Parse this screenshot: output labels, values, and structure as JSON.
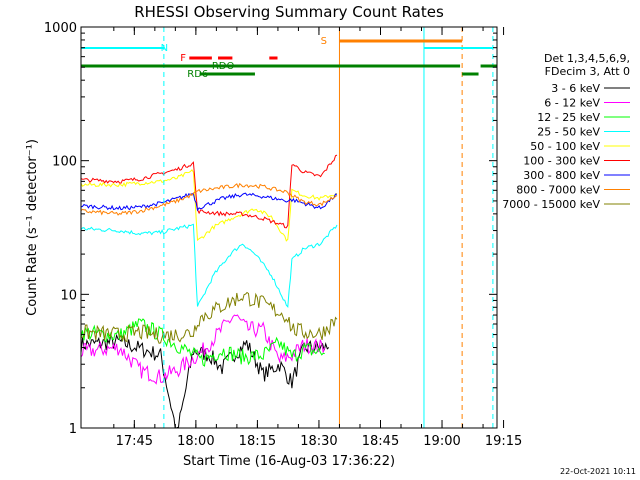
{
  "chart_data": {
    "type": "line",
    "title": "RHESSI Observing Summary Count Rates",
    "xlabel": "Start Time (16-Aug-03 17:36:22)",
    "ylabel": "Count Rate (s⁻¹ detector⁻¹)",
    "y_scale": "log",
    "ylim": [
      1,
      1000
    ],
    "xlim": [
      -4.4,
      97.0
    ],
    "x_ticks": [
      {
        "label": "17:45",
        "value": 8.6
      },
      {
        "label": "18:00",
        "value": 23.6
      },
      {
        "label": "18:15",
        "value": 38.6
      },
      {
        "label": "18:30",
        "value": 53.6
      },
      {
        "label": "18:45",
        "value": 68.6
      },
      {
        "label": "19:00",
        "value": 83.6
      },
      {
        "label": "19:15",
        "value": 98.6
      }
    ],
    "y_ticks": [
      {
        "label": "1",
        "value": 1
      },
      {
        "label": "10",
        "value": 10
      },
      {
        "label": "100",
        "value": 100
      },
      {
        "label": "1000",
        "value": 1000
      }
    ],
    "legend_header": [
      "Det 1,3,4,5,6,9,",
      "FDecim 3, Att 0"
    ],
    "legend_position": "right",
    "series": [
      {
        "name": "3 - 6 keV",
        "color": "#000000",
        "points": [
          [
            -4.4,
            4.2
          ],
          [
            5,
            4.4
          ],
          [
            15,
            3.5
          ],
          [
            19,
            0.9
          ],
          [
            23,
            3.8
          ],
          [
            27,
            3.5
          ],
          [
            30,
            2.8
          ],
          [
            33,
            3.6
          ],
          [
            36,
            4.3
          ],
          [
            40,
            2.5
          ],
          [
            44,
            3.0
          ],
          [
            47,
            2.2
          ],
          [
            50,
            4.0
          ],
          [
            56,
            4.0
          ]
        ]
      },
      {
        "name": "6 - 12 keV",
        "color": "#ff00ff",
        "points": [
          [
            -4.4,
            3.7
          ],
          [
            5,
            4.0
          ],
          [
            10,
            2.7
          ],
          [
            15,
            2.4
          ],
          [
            19,
            2.7
          ],
          [
            25,
            3.7
          ],
          [
            30,
            5.5
          ],
          [
            33,
            7.0
          ],
          [
            36,
            5.5
          ],
          [
            40,
            5.4
          ],
          [
            44,
            3.2
          ],
          [
            47,
            3.5
          ],
          [
            50,
            4.2
          ],
          [
            55,
            4.0
          ]
        ]
      },
      {
        "name": "12 - 25 keV",
        "color": "#00ff00",
        "points": [
          [
            -4.4,
            5.2
          ],
          [
            5,
            4.9
          ],
          [
            10,
            6.0
          ],
          [
            15,
            5.0
          ],
          [
            19,
            4.2
          ],
          [
            25,
            3.2
          ],
          [
            30,
            3.8
          ],
          [
            35,
            3.4
          ],
          [
            40,
            3.5
          ],
          [
            44,
            4.3
          ],
          [
            47,
            3.4
          ],
          [
            50,
            3.9
          ],
          [
            55,
            3.6
          ]
        ]
      },
      {
        "name": "25 - 50 keV",
        "color": "#00ffff",
        "points": [
          [
            -4.4,
            31
          ],
          [
            5,
            30
          ],
          [
            10,
            28.5
          ],
          [
            15,
            29
          ],
          [
            19,
            31
          ],
          [
            23,
            33
          ],
          [
            24,
            8
          ],
          [
            28,
            14
          ],
          [
            32,
            20
          ],
          [
            35,
            24
          ],
          [
            38,
            20
          ],
          [
            42,
            14
          ],
          [
            46,
            8
          ],
          [
            47,
            18
          ],
          [
            50,
            22
          ],
          [
            54,
            24
          ],
          [
            58,
            33
          ]
        ]
      },
      {
        "name": "50 - 100 keV",
        "color": "#ffff00",
        "points": [
          [
            -4.4,
            66
          ],
          [
            5,
            66
          ],
          [
            10,
            68
          ],
          [
            15,
            70
          ],
          [
            19,
            74
          ],
          [
            23,
            84
          ],
          [
            24,
            25
          ],
          [
            28,
            32
          ],
          [
            33,
            38
          ],
          [
            38,
            44
          ],
          [
            42,
            38
          ],
          [
            46,
            25
          ],
          [
            47,
            60
          ],
          [
            50,
            55
          ],
          [
            54,
            52
          ],
          [
            58,
            57
          ]
        ]
      },
      {
        "name": "100 - 300 keV",
        "color": "#ff0000",
        "points": [
          [
            -4.4,
            72
          ],
          [
            5,
            70
          ],
          [
            10,
            73
          ],
          [
            15,
            80
          ],
          [
            19,
            86
          ],
          [
            23,
            96
          ],
          [
            24,
            42
          ],
          [
            30,
            40
          ],
          [
            35,
            40
          ],
          [
            40,
            37
          ],
          [
            46,
            32
          ],
          [
            47,
            95
          ],
          [
            50,
            82
          ],
          [
            54,
            76
          ],
          [
            58,
            110
          ]
        ]
      },
      {
        "name": "300 - 800 keV",
        "color": "#0000ff",
        "points": [
          [
            -4.4,
            46
          ],
          [
            5,
            44
          ],
          [
            10,
            45
          ],
          [
            15,
            48
          ],
          [
            19,
            52
          ],
          [
            23,
            57
          ],
          [
            24,
            44
          ],
          [
            30,
            52
          ],
          [
            35,
            56
          ],
          [
            40,
            54
          ],
          [
            46,
            50
          ],
          [
            47,
            51
          ],
          [
            50,
            48
          ],
          [
            54,
            44
          ],
          [
            58,
            56
          ]
        ]
      },
      {
        "name": "800 - 7000 keV",
        "color": "#ff8000",
        "points": [
          [
            -4.4,
            42
          ],
          [
            5,
            40
          ],
          [
            10,
            42
          ],
          [
            15,
            46
          ],
          [
            19,
            50
          ],
          [
            23,
            56
          ],
          [
            24,
            59
          ],
          [
            30,
            63
          ],
          [
            35,
            66
          ],
          [
            40,
            64
          ],
          [
            46,
            58
          ],
          [
            47,
            55
          ],
          [
            50,
            49
          ],
          [
            54,
            47
          ],
          [
            58,
            55
          ]
        ]
      },
      {
        "name": "7000 - 15000 keV",
        "color": "#808000",
        "points": [
          [
            -4.4,
            5.2
          ],
          [
            5,
            5.0
          ],
          [
            10,
            5.2
          ],
          [
            15,
            4.9
          ],
          [
            19,
            5.0
          ],
          [
            23,
            5.2
          ],
          [
            24,
            6.5
          ],
          [
            30,
            8.2
          ],
          [
            35,
            9.8
          ],
          [
            40,
            8.5
          ],
          [
            46,
            6.8
          ],
          [
            47,
            5.5
          ],
          [
            50,
            5.2
          ],
          [
            54,
            5.1
          ],
          [
            58,
            6.5
          ]
        ]
      }
    ],
    "annotations": {
      "flags": [
        {
          "label": "N",
          "color": "#00ffff"
        },
        {
          "label": "F",
          "color": "#ff0000"
        },
        {
          "label": "RDO",
          "color": "#008000"
        },
        {
          "label": "RD6",
          "color": "#008000"
        },
        {
          "label": "S",
          "color": "#ff8000"
        }
      ],
      "timestamp": "22-Oct-2021 10:11"
    }
  }
}
